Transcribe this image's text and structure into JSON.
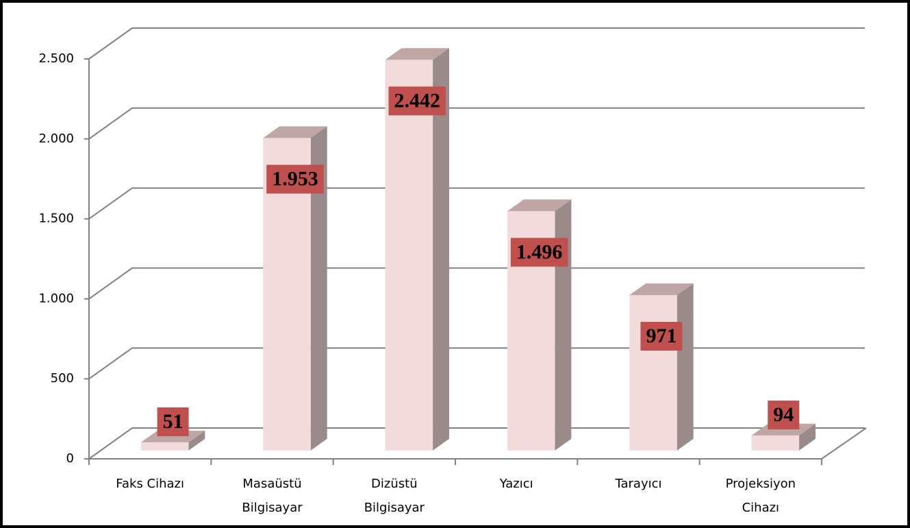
{
  "chart_data": {
    "type": "bar3d",
    "categories": [
      "Faks Cihazı",
      "Masaüstü\nBilgisayar",
      "Dizüstü\nBilgisayar",
      "Yazıcı",
      "Tarayıcı",
      "Projeksiyon\nCihazı"
    ],
    "values": [
      51,
      1953,
      2442,
      1496,
      971,
      94
    ],
    "value_labels": [
      "51",
      "1.953",
      "2.442",
      "1.496",
      "971",
      "94"
    ],
    "color": "#f2dcdb",
    "label_color": "#c0504d",
    "ylim": [
      0,
      2500
    ],
    "yticks": [
      0,
      500,
      {
        "value": 1000,
        "label": "1.000"
      },
      {
        "value": 1500,
        "label": "1.500"
      },
      {
        "value": 2000,
        "label": "2.000"
      },
      {
        "value": 2500,
        "label": "2.500"
      }
    ],
    "grid": true
  }
}
